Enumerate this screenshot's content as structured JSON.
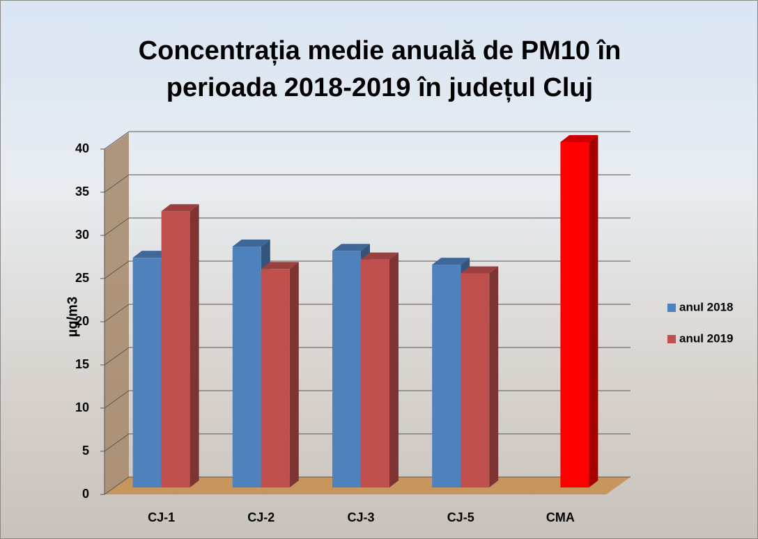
{
  "chart_data": {
    "type": "bar3d",
    "title": "Concentrația medie anuală de PM10 în perioada 2018-2019 în județul Cluj",
    "y_label": "µg/m3",
    "categories": [
      "CJ-1",
      "CJ-2",
      "CJ-3",
      "CJ-5",
      "CMA"
    ],
    "series": [
      {
        "name": "anul 2018",
        "color": "#4f81bd",
        "values": [
          26.6,
          27.9,
          27.4,
          25.8,
          null
        ]
      },
      {
        "name": "anul 2019",
        "color": "#c0504d",
        "values": [
          32.0,
          25.3,
          26.4,
          24.8,
          40
        ],
        "colors": [
          "#c0504d",
          "#c0504d",
          "#c0504d",
          "#c0504d",
          "#ff0000"
        ]
      }
    ],
    "ylim": [
      0,
      40
    ],
    "yticks": [
      0,
      5,
      10,
      15,
      20,
      25,
      30,
      35,
      40
    ],
    "grid": true,
    "legend": "right"
  }
}
